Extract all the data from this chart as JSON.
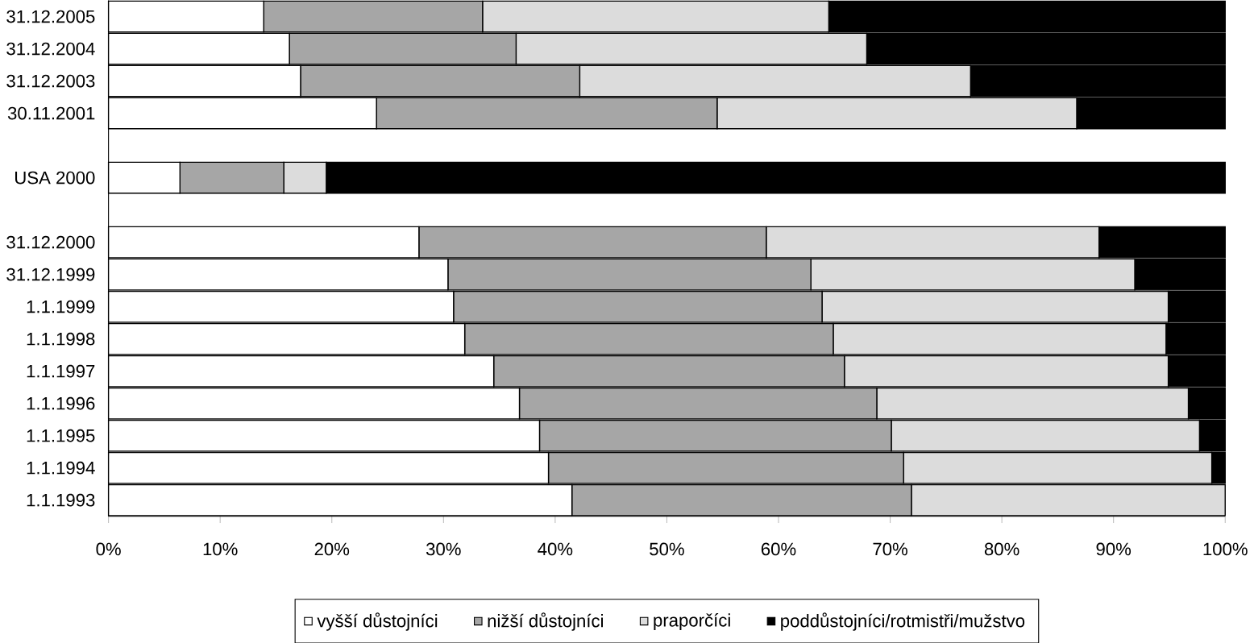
{
  "chart_data": {
    "type": "bar",
    "orientation": "horizontal",
    "stacked": true,
    "categories": [
      "31.12.2005",
      "31.12.2004",
      "31.12.2003",
      "30.11.2001",
      null,
      "USA 2000",
      null,
      "31.12.2000",
      "31.12.1999",
      "1.1.1999",
      "1.1.1998",
      "1.1.1997",
      "1.1.1996",
      "1.1.1995",
      "1.1.1994",
      "1.1.1993"
    ],
    "series": [
      {
        "name": "vyšší důstojníci",
        "color": "#ffffff",
        "values": [
          13.9,
          16.2,
          17.2,
          24.0,
          null,
          6.4,
          null,
          27.8,
          30.4,
          30.9,
          31.9,
          34.5,
          36.8,
          38.6,
          39.4,
          41.5
        ]
      },
      {
        "name": "nižší důstojníci",
        "color": "#a6a6a6",
        "values": [
          19.6,
          20.3,
          25.0,
          30.5,
          null,
          9.3,
          null,
          31.1,
          32.5,
          33.0,
          33.0,
          31.4,
          32.0,
          31.5,
          31.8,
          30.4
        ]
      },
      {
        "name": "praporčíci",
        "color": "#dcdcdc",
        "values": [
          31.0,
          31.4,
          35.0,
          32.2,
          null,
          3.8,
          null,
          29.8,
          29.0,
          31.0,
          29.8,
          29.0,
          27.9,
          27.6,
          27.6,
          28.1
        ]
      },
      {
        "name": "poddůstojníci/rotmistři/mužstvo",
        "color": "#000000",
        "values": [
          35.5,
          32.1,
          22.8,
          13.3,
          null,
          80.5,
          null,
          11.3,
          8.1,
          5.1,
          5.3,
          5.1,
          3.3,
          2.3,
          1.2,
          0.0
        ]
      }
    ],
    "xlim": [
      0,
      100
    ],
    "xticks": [
      {
        "value": 0,
        "label": "0%"
      },
      {
        "value": 10,
        "label": "10%"
      },
      {
        "value": 20,
        "label": "20%"
      },
      {
        "value": 30,
        "label": "30%"
      },
      {
        "value": 40,
        "label": "40%"
      },
      {
        "value": 50,
        "label": "50%"
      },
      {
        "value": 60,
        "label": "60%"
      },
      {
        "value": 70,
        "label": "70%"
      },
      {
        "value": 80,
        "label": "80%"
      },
      {
        "value": 90,
        "label": "90%"
      },
      {
        "value": 100,
        "label": "100%"
      }
    ],
    "legend": "bottom"
  }
}
